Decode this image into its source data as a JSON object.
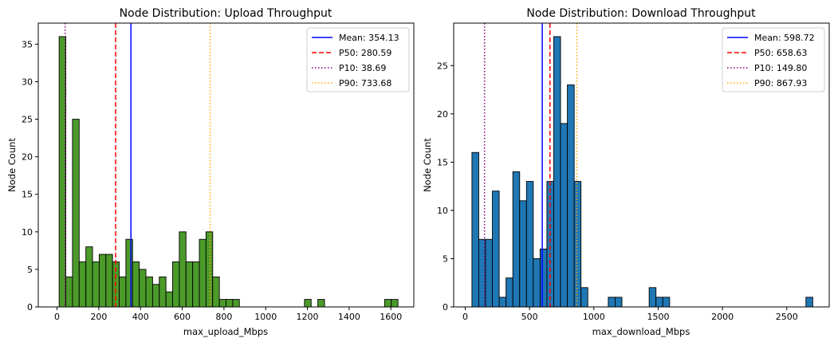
{
  "chart_data": [
    {
      "type": "bar",
      "title": "Node Distribution: Upload Throughput",
      "xlabel": "max_upload_Mbps",
      "ylabel": "Node Count",
      "xlim": [
        -90,
        1710
      ],
      "ylim": [
        0,
        37.8
      ],
      "xticks": [
        0,
        200,
        400,
        600,
        800,
        1000,
        1200,
        1400,
        1600
      ],
      "yticks": [
        0,
        5,
        10,
        15,
        20,
        25,
        30,
        35
      ],
      "bar_color": "#4b9a2a",
      "bin_width": 32,
      "bin_starts": [
        10,
        42,
        74,
        106,
        138,
        170,
        202,
        234,
        266,
        298,
        330,
        362,
        394,
        426,
        458,
        490,
        522,
        554,
        586,
        618,
        650,
        682,
        714,
        746,
        778,
        810,
        842,
        1186,
        1250,
        1570,
        1602
      ],
      "values": [
        36,
        4,
        25,
        6,
        8,
        6,
        7,
        7,
        6,
        4,
        9,
        6,
        5,
        4,
        3,
        4,
        2,
        6,
        10,
        6,
        6,
        9,
        10,
        4,
        1,
        1,
        1,
        1,
        1,
        1,
        1
      ],
      "reference_lines": [
        {
          "label": "Mean: 354.13",
          "value": 354.13,
          "color": "#0000ff",
          "style": "solid"
        },
        {
          "label": "P50: 280.59",
          "value": 280.59,
          "color": "#ff0000",
          "style": "dashed"
        },
        {
          "label": "P10: 38.69",
          "value": 38.69,
          "color": "#800080",
          "style": "dotted"
        },
        {
          "label": "P90: 733.68",
          "value": 733.68,
          "color": "#ffa500",
          "style": "dotted"
        }
      ],
      "legend_position": "top-right",
      "grid": false
    },
    {
      "type": "bar",
      "title": "Node Distribution: Download Throughput",
      "xlabel": "max_download_Mbps",
      "ylabel": "Node Count",
      "xlim": [
        -90,
        2830
      ],
      "ylim": [
        0,
        29.4
      ],
      "xticks": [
        0,
        500,
        1000,
        1500,
        2000,
        2500
      ],
      "yticks": [
        0,
        5,
        10,
        15,
        20,
        25
      ],
      "bar_color": "#1f77b4",
      "bin_width": 53,
      "bin_starts": [
        52,
        105,
        158,
        211,
        264,
        317,
        370,
        423,
        476,
        529,
        582,
        635,
        688,
        741,
        794,
        847,
        900,
        1112,
        1165,
        1430,
        1483,
        1536,
        2649
      ],
      "values": [
        16,
        7,
        7,
        12,
        1,
        3,
        14,
        11,
        13,
        5,
        6,
        13,
        28,
        19,
        23,
        13,
        2,
        1,
        1,
        2,
        1,
        1,
        1
      ],
      "reference_lines": [
        {
          "label": "Mean: 598.72",
          "value": 598.72,
          "color": "#0000ff",
          "style": "solid"
        },
        {
          "label": "P50: 658.63",
          "value": 658.63,
          "color": "#ff0000",
          "style": "dashed"
        },
        {
          "label": "P10: 149.80",
          "value": 149.8,
          "color": "#800080",
          "style": "dotted"
        },
        {
          "label": "P90: 867.93",
          "value": 867.93,
          "color": "#ffa500",
          "style": "dotted"
        }
      ],
      "legend_position": "top-right",
      "grid": false
    }
  ]
}
